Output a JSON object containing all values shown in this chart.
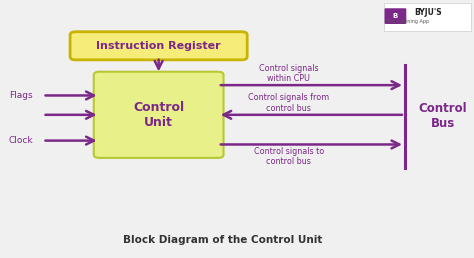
{
  "bg_color": "#f0f0f0",
  "ir_text": "Instruction Register",
  "control_unit_text": "Control\nUnit",
  "flags_text": "Flags",
  "clock_text": "Clock",
  "control_bus_text": "Control\nBus",
  "sig_cpu_text": "Control signals\nwithin CPU",
  "sig_from_text": "Control signals from\ncontrol bus",
  "sig_to_text": "Control signals to\ncontrol bus",
  "bottom_title": "Block Diagram of the Control Unit",
  "purple": "#7B2888",
  "ir_fill": "#f5ec7a",
  "ir_edge": "#c8b400",
  "cu_fill": "#e8f08a",
  "cu_edge": "#b8c832",
  "byju_purple": "#7B2888",
  "byju_red": "#cc2200",
  "xlim": [
    0,
    10
  ],
  "ylim": [
    0,
    10
  ]
}
